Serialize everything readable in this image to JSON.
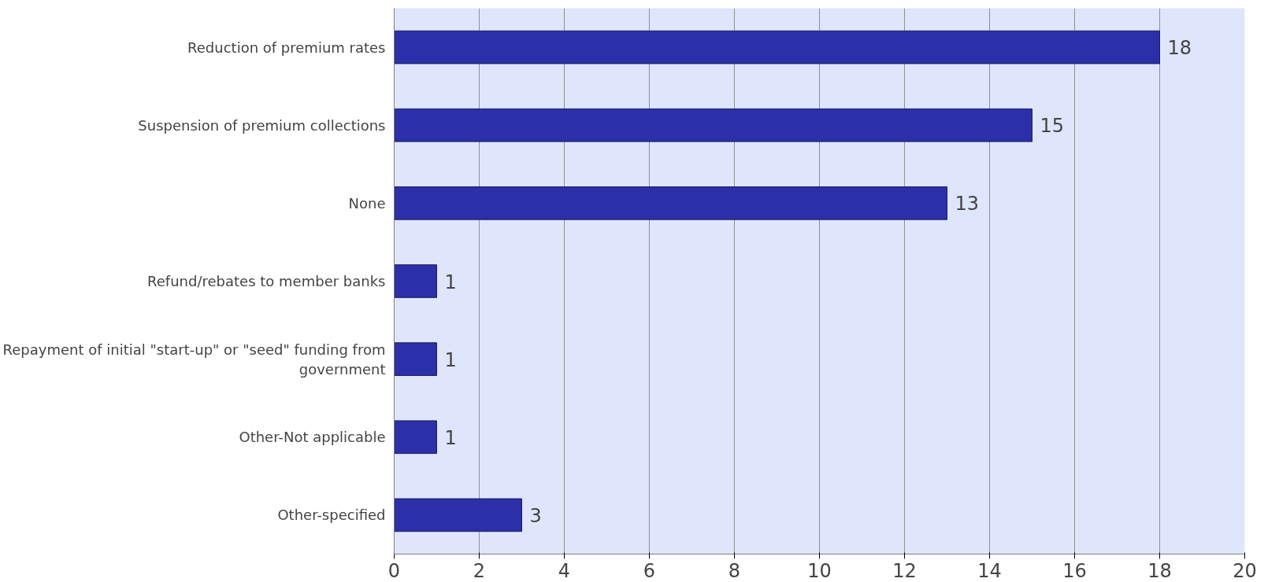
{
  "chart_data": {
    "type": "bar",
    "orientation": "horizontal",
    "categories": [
      "Reduction of premium rates",
      "Suspension of premium collections",
      "None",
      "Refund/rebates to member banks",
      "Repayment of initial \"start-up\" or \"seed\" funding from government",
      "Other-Not applicable",
      "Other-specified"
    ],
    "values": [
      18,
      15,
      13,
      1,
      1,
      1,
      3
    ],
    "color": "#2b2fa8",
    "xlim": [
      0,
      20
    ],
    "xticks": [
      0,
      2,
      4,
      6,
      8,
      10,
      12,
      14,
      16,
      18,
      20
    ],
    "grid": "x",
    "data_labels": true
  }
}
